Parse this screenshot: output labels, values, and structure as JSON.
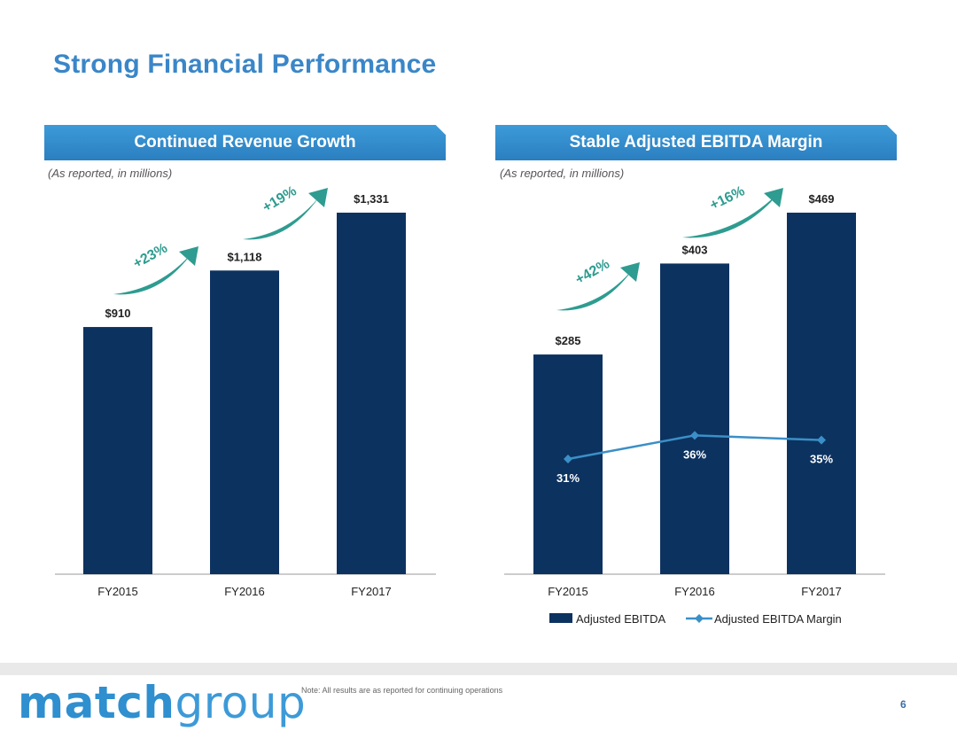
{
  "page": {
    "title": "Strong Financial Performance",
    "note": "Note: All results are as reported for continuing operations",
    "page_number": "6",
    "logo": {
      "bold": "match",
      "light": "group"
    }
  },
  "colors": {
    "title": "#3a86c8",
    "bar": "#0c3260",
    "line": "#3b8fc7",
    "arrow": "#2e9c90",
    "banner": "#2f88c8"
  },
  "chart_data": [
    {
      "type": "bar",
      "title": "Continued Revenue Growth",
      "subtitle": "(As reported, in millions)",
      "categories": [
        "FY2015",
        "FY2016",
        "FY2017"
      ],
      "values": [
        910,
        1118,
        1331
      ],
      "value_labels": [
        "$910",
        "$1,118",
        "$1,331"
      ],
      "ylim": [
        0,
        1331
      ],
      "growth": [
        "+23%",
        "+19%"
      ]
    },
    {
      "type": "bar+line",
      "title": "Stable Adjusted EBITDA Margin",
      "subtitle": "(As reported, in millions)",
      "categories": [
        "FY2015",
        "FY2016",
        "FY2017"
      ],
      "series": [
        {
          "name": "Adjusted EBITDA",
          "values": [
            285,
            403,
            469
          ],
          "value_labels": [
            "$285",
            "$403",
            "$469"
          ]
        },
        {
          "name": "Adjusted EBITDA Margin",
          "values": [
            31,
            36,
            35
          ],
          "value_labels": [
            "31%",
            "36%",
            "35%"
          ]
        }
      ],
      "ylim": [
        0,
        469
      ],
      "margin_axis": [
        0,
        100
      ],
      "growth": [
        "+42%",
        "+16%"
      ],
      "legend": [
        "Adjusted EBITDA",
        "Adjusted EBITDA Margin"
      ]
    }
  ]
}
